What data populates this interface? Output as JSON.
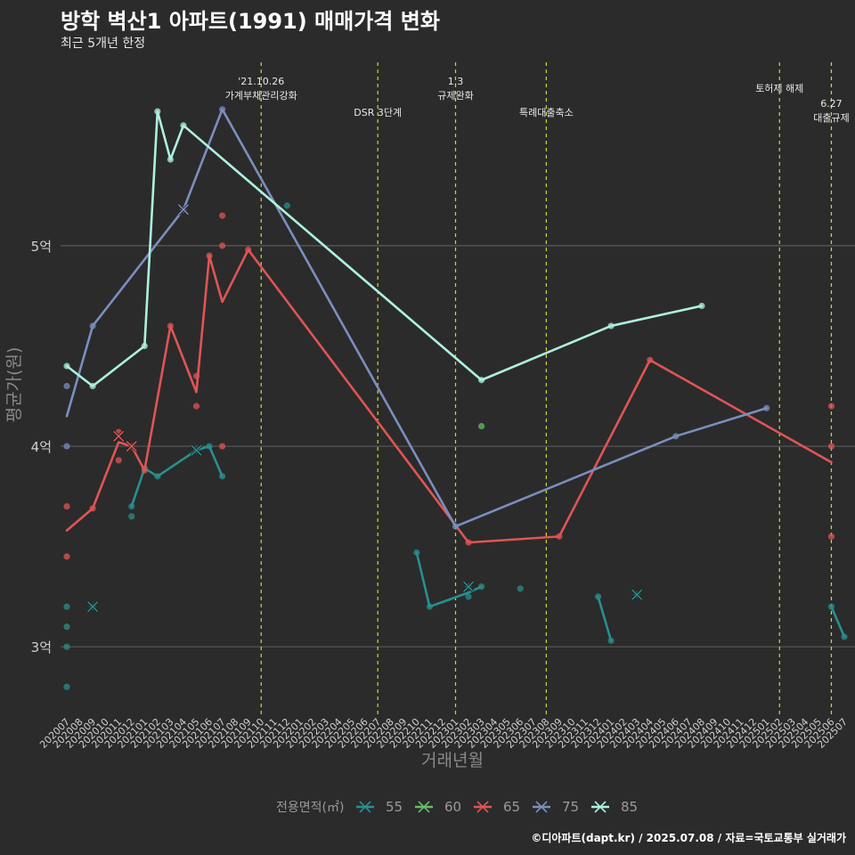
{
  "chart_data": {
    "type": "line",
    "title": "방학 벽산1 아파트(1991) 매매가격 변화",
    "subtitle": "최근 5개년 한정",
    "xlabel": "거래년월",
    "ylabel": "평균가(원)",
    "caption": "©디아파트(dapt.kr) / 2025.07.08 / 자료=국토교통부 실거래가",
    "legend_title": "전용면적(㎡)",
    "ylim": [
      2.65,
      5.95
    ],
    "y_ticks": [
      {
        "value": 3,
        "label": "3억"
      },
      {
        "value": 4,
        "label": "4억"
      },
      {
        "value": 5,
        "label": "5억"
      }
    ],
    "categories": [
      "202007",
      "202008",
      "202009",
      "202010",
      "202011",
      "202012",
      "202101",
      "202102",
      "202103",
      "202104",
      "202105",
      "202106",
      "202107",
      "202108",
      "202109",
      "202110",
      "202111",
      "202112",
      "202201",
      "202202",
      "202203",
      "202204",
      "202205",
      "202206",
      "202207",
      "202208",
      "202209",
      "202210",
      "202211",
      "202212",
      "202301",
      "202302",
      "202303",
      "202304",
      "202305",
      "202306",
      "202307",
      "202308",
      "202309",
      "202310",
      "202311",
      "202312",
      "202401",
      "202402",
      "202403",
      "202404",
      "202405",
      "202406",
      "202407",
      "202408",
      "202409",
      "202410",
      "202411",
      "202412",
      "202501",
      "202502",
      "202503",
      "202504",
      "202505",
      "202506",
      "202507"
    ],
    "events": [
      {
        "month": "202110",
        "lines": [
          "'21.10.26",
          "가계부채관리강화"
        ],
        "row": "top"
      },
      {
        "month": "202207",
        "lines": [
          "DSR 3단계"
        ],
        "row": "mid"
      },
      {
        "month": "202301",
        "lines": [
          "1.3",
          "규제완화"
        ],
        "row": "top"
      },
      {
        "month": "202308",
        "lines": [
          "특례대출축소"
        ],
        "row": "mid"
      },
      {
        "month": "202502",
        "lines": [
          "토허제 해제"
        ],
        "row": "high"
      },
      {
        "month": "202506",
        "lines": [
          "6.27",
          "대출규제"
        ],
        "row": "low"
      }
    ],
    "series": [
      {
        "name": "55",
        "color": "#2a8f8f",
        "line_segments": [
          [
            [
              "202012",
              3.7
            ],
            [
              "202101",
              3.89
            ],
            [
              "202102",
              3.85
            ],
            [
              "202105",
              3.98
            ],
            [
              "202106",
              4.0
            ],
            [
              "202107",
              3.85
            ]
          ],
          [
            [
              "202210",
              3.47
            ],
            [
              "202211",
              3.2
            ],
            [
              "202302",
              3.27
            ],
            [
              "202303",
              3.3
            ]
          ],
          [
            [
              "202312",
              3.25
            ],
            [
              "202401",
              3.03
            ]
          ],
          [
            [
              "202506",
              3.2
            ],
            [
              "202507",
              3.05
            ]
          ]
        ],
        "points": [
          [
            "202007",
            3.2
          ],
          [
            "202007",
            3.1
          ],
          [
            "202007",
            3.0
          ],
          [
            "202007",
            2.8
          ],
          [
            "202009",
            3.2
          ],
          [
            "202012",
            3.65
          ],
          [
            "202012",
            3.7
          ],
          [
            "202101",
            3.89
          ],
          [
            "202102",
            3.85
          ],
          [
            "202105",
            3.98
          ],
          [
            "202106",
            4.0
          ],
          [
            "202107",
            3.85
          ],
          [
            "202112",
            5.2
          ],
          [
            "202210",
            3.47
          ],
          [
            "202211",
            3.2
          ],
          [
            "202302",
            3.3
          ],
          [
            "202302",
            3.25
          ],
          [
            "202303",
            3.3
          ],
          [
            "202306",
            3.29
          ],
          [
            "202312",
            3.25
          ],
          [
            "202401",
            3.03
          ],
          [
            "202403",
            3.26
          ],
          [
            "202506",
            3.2
          ],
          [
            "202507",
            3.05
          ]
        ],
        "cancelled": [
          [
            "202009",
            3.2
          ],
          [
            "202105",
            3.98
          ],
          [
            "202302",
            3.3
          ],
          [
            "202403",
            3.26
          ]
        ]
      },
      {
        "name": "60",
        "color": "#66bb66",
        "line_segments": [],
        "points": [
          [
            "202303",
            4.1
          ]
        ],
        "cancelled": []
      },
      {
        "name": "65",
        "color": "#e05555",
        "line_segments": [
          [
            [
              "202007",
              3.58
            ],
            [
              "202009",
              3.69
            ],
            [
              "202011",
              4.02
            ],
            [
              "202012",
              4.0
            ],
            [
              "202101",
              3.88
            ],
            [
              "202103",
              4.6
            ],
            [
              "202105",
              4.27
            ],
            [
              "202106",
              4.95
            ],
            [
              "202107",
              4.72
            ],
            [
              "202109",
              4.98
            ],
            [
              "202302",
              3.52
            ],
            [
              "202309",
              3.55
            ],
            [
              "202404",
              4.43
            ],
            [
              "202506",
              3.92
            ]
          ]
        ],
        "points": [
          [
            "202007",
            3.7
          ],
          [
            "202007",
            3.45
          ],
          [
            "202009",
            3.69
          ],
          [
            "202011",
            4.07
          ],
          [
            "202011",
            3.93
          ],
          [
            "202012",
            4.0
          ],
          [
            "202101",
            3.88
          ],
          [
            "202103",
            4.6
          ],
          [
            "202105",
            4.35
          ],
          [
            "202105",
            4.2
          ],
          [
            "202106",
            4.95
          ],
          [
            "202107",
            5.15
          ],
          [
            "202107",
            5.0
          ],
          [
            "202107",
            4.0
          ],
          [
            "202109",
            4.98
          ],
          [
            "202302",
            3.52
          ],
          [
            "202309",
            3.55
          ],
          [
            "202404",
            4.43
          ],
          [
            "202506",
            4.2
          ],
          [
            "202506",
            4.0
          ],
          [
            "202506",
            3.55
          ]
        ],
        "cancelled": [
          [
            "202011",
            4.05
          ],
          [
            "202012",
            4.0
          ]
        ]
      },
      {
        "name": "75",
        "color": "#7a8fbf",
        "line_segments": [
          [
            [
              "202007",
              4.15
            ],
            [
              "202009",
              4.6
            ],
            [
              "202104",
              5.18
            ],
            [
              "202107",
              5.68
            ],
            [
              "202301",
              3.6
            ],
            [
              "202406",
              4.05
            ],
            [
              "202501",
              4.19
            ]
          ]
        ],
        "points": [
          [
            "202007",
            4.3
          ],
          [
            "202007",
            4.0
          ],
          [
            "202009",
            4.6
          ],
          [
            "202104",
            5.18
          ],
          [
            "202107",
            5.68
          ],
          [
            "202301",
            3.6
          ],
          [
            "202406",
            4.05
          ],
          [
            "202501",
            4.19
          ]
        ],
        "cancelled": [
          [
            "202104",
            5.18
          ]
        ]
      },
      {
        "name": "85",
        "color": "#aef0e0",
        "line_segments": [
          [
            [
              "202007",
              4.4
            ],
            [
              "202009",
              4.3
            ],
            [
              "202101",
              4.5
            ],
            [
              "202102",
              5.67
            ],
            [
              "202103",
              5.43
            ],
            [
              "202104",
              5.6
            ],
            [
              "202303",
              4.33
            ],
            [
              "202401",
              4.6
            ],
            [
              "202408",
              4.7
            ]
          ]
        ],
        "points": [
          [
            "202007",
            4.4
          ],
          [
            "202009",
            4.3
          ],
          [
            "202101",
            4.5
          ],
          [
            "202102",
            5.67
          ],
          [
            "202103",
            5.43
          ],
          [
            "202104",
            5.6
          ],
          [
            "202303",
            4.33
          ],
          [
            "202401",
            4.6
          ],
          [
            "202408",
            4.7
          ]
        ],
        "cancelled": []
      }
    ]
  }
}
